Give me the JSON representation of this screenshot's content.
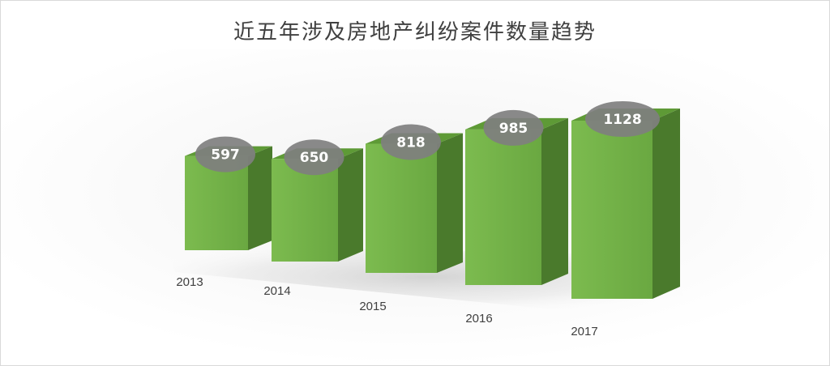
{
  "chart_data": {
    "type": "bar",
    "title": "近五年涉及房地产纠纷案件数量趋势",
    "categories": [
      "2013",
      "2014",
      "2015",
      "2016",
      "2017"
    ],
    "values": [
      597,
      650,
      818,
      985,
      1128
    ],
    "xlabel": "",
    "ylabel": "",
    "ylim": [
      0,
      1128
    ],
    "grid": false,
    "legend": "none",
    "style": "3d-column",
    "colors": {
      "bar_front": "#70ad47",
      "bar_side": "#4a7a2c",
      "bar_top": "#5e9a36",
      "label_bubble": "#7f7f7f",
      "label_text": "#ffffff",
      "axis_text": "#404040"
    }
  }
}
